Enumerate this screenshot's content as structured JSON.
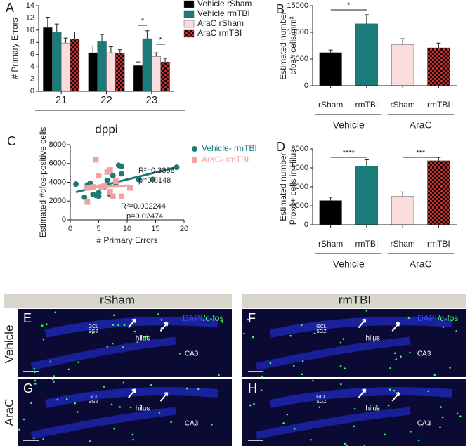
{
  "chart_data": [
    {
      "type": "bar",
      "panel": "A",
      "ylabel": "# Primary Errors",
      "xlabel": "dppi",
      "categories": [
        "21",
        "22",
        "23"
      ],
      "series": [
        {
          "name": "Vehicle rSham",
          "color": "#000000",
          "values": [
            10.4,
            6.3,
            4.2
          ],
          "errors": [
            1.7,
            1.1,
            0.6
          ]
        },
        {
          "name": "Vehicle rmTBI",
          "color": "#1b7b78",
          "values": [
            9.7,
            8.1,
            8.6
          ],
          "errors": [
            1.3,
            1.2,
            1.3
          ]
        },
        {
          "name": "AraC rSham",
          "color": "#fbdcdc",
          "values": [
            7.9,
            6.3,
            5.7
          ],
          "errors": [
            0.8,
            1.0,
            0.6
          ]
        },
        {
          "name": "AraC rmTBI",
          "color": "checker",
          "values": [
            8.5,
            6.2,
            4.8
          ],
          "errors": [
            1.2,
            0.6,
            0.6
          ]
        }
      ],
      "ylim": [
        0,
        14
      ],
      "yticks": [
        0,
        2,
        4,
        6,
        8,
        10,
        12,
        14
      ],
      "significance": [
        "*",
        "*"
      ]
    },
    {
      "type": "bar",
      "panel": "B",
      "ylabel": [
        "Estimated number",
        "cfos⁺ cells/mm³"
      ],
      "categories": [
        "rSham",
        "rmTBI",
        "rSham",
        "rmTBI"
      ],
      "groups": [
        "Vehicle",
        "AraC"
      ],
      "series": [
        {
          "colors": [
            "#000000",
            "#1b7b78",
            "#fbdcdc",
            "checker"
          ],
          "values": [
            6200,
            11600,
            7700,
            7100
          ],
          "errors": [
            500,
            1700,
            1100,
            900
          ]
        }
      ],
      "ylim": [
        0,
        15000
      ],
      "yticks": [
        0,
        5000,
        10000,
        15000
      ],
      "significance": [
        "*"
      ]
    },
    {
      "type": "scatter",
      "panel": "C",
      "ylabel": "Estimated #cfos-positive cells",
      "xlabel": "# Primary Errors",
      "series": [
        {
          "name": "Vehicle- rmTBI",
          "color": "#1b7b78",
          "marker": "circle",
          "x": [
            1,
            2.5,
            3,
            3.5,
            4,
            4.5,
            5,
            5,
            6,
            6.5,
            7,
            7.5,
            8,
            8.5,
            9,
            9,
            12,
            14.5,
            18.7
          ],
          "values": [
            3800,
            2400,
            3700,
            3900,
            2700,
            2600,
            2500,
            2900,
            3500,
            4200,
            2700,
            4700,
            3900,
            5800,
            4900,
            5700,
            4300,
            4300,
            5600
          ],
          "fit": {
            "x": [
              1,
              18.7
            ],
            "y": [
              2950,
              5600
            ]
          }
        },
        {
          "name": "AraC- rmTBI",
          "color": "#f4a0a0",
          "marker": "square",
          "x": [
            3,
            3,
            4.5,
            5,
            5.5,
            6,
            6.5,
            7,
            7,
            7.5,
            8,
            9,
            10.5,
            4
          ],
          "values": [
            1900,
            3400,
            6400,
            4700,
            3500,
            3600,
            5100,
            5300,
            3000,
            2500,
            4100,
            2500,
            3400,
            3500
          ],
          "fit": {
            "x": [
              2.5,
              10.5
            ],
            "y": [
              3500,
              3650
            ]
          }
        }
      ],
      "xlim": [
        0,
        20
      ],
      "xticks": [
        0,
        5,
        10,
        15,
        20
      ],
      "ylim": [
        0,
        8000
      ],
      "yticks": [
        0,
        2000,
        4000,
        6000,
        8000
      ],
      "annotations": [
        "R²=0.3358",
        "p=0.0148",
        "R²=0.002244",
        "p=0.02474"
      ]
    },
    {
      "type": "bar",
      "panel": "D",
      "ylabel": [
        "Estimated number",
        "Prox1+ cells in Hilus"
      ],
      "categories": [
        "rSham",
        "rmTBI",
        "rSham",
        "rmTBI"
      ],
      "groups": [
        "Vehicle",
        "AraC"
      ],
      "series": [
        {
          "colors": [
            "#000000",
            "#1b7b78",
            "#fbdcdc",
            "checker"
          ],
          "values": [
            2550,
            6200,
            3000,
            6750
          ],
          "errors": [
            350,
            650,
            450,
            350
          ]
        }
      ],
      "ylim": [
        0,
        8000
      ],
      "yticks": [
        0,
        2000,
        4000,
        6000,
        8000
      ],
      "significance": [
        "****",
        "***"
      ]
    }
  ],
  "micrographs": {
    "columns": [
      "rSham",
      "rmTBI"
    ],
    "rows": [
      "Vehicle",
      "AraC"
    ],
    "panels": [
      {
        "letter": "E",
        "dapi": "DAPI",
        "cfos": "/c-fos",
        "gcl": "GCL",
        "sgz": "SGZ",
        "hilus": "hilus",
        "ca3": "CA3"
      },
      {
        "letter": "F",
        "dapi": "DAPI",
        "cfos": "/c-fos",
        "gcl": "GCL",
        "sgz": "SGZ",
        "hilus": "hilus",
        "ca3": "CA3"
      },
      {
        "letter": "G",
        "gcl": "GCL",
        "sgz": "SGZ",
        "hilus": "hilus",
        "ca3": "CA3"
      },
      {
        "letter": "H",
        "gcl": "GCL",
        "sgz": "SGZ",
        "hilus": "hilus",
        "ca3": "CA3"
      }
    ]
  }
}
